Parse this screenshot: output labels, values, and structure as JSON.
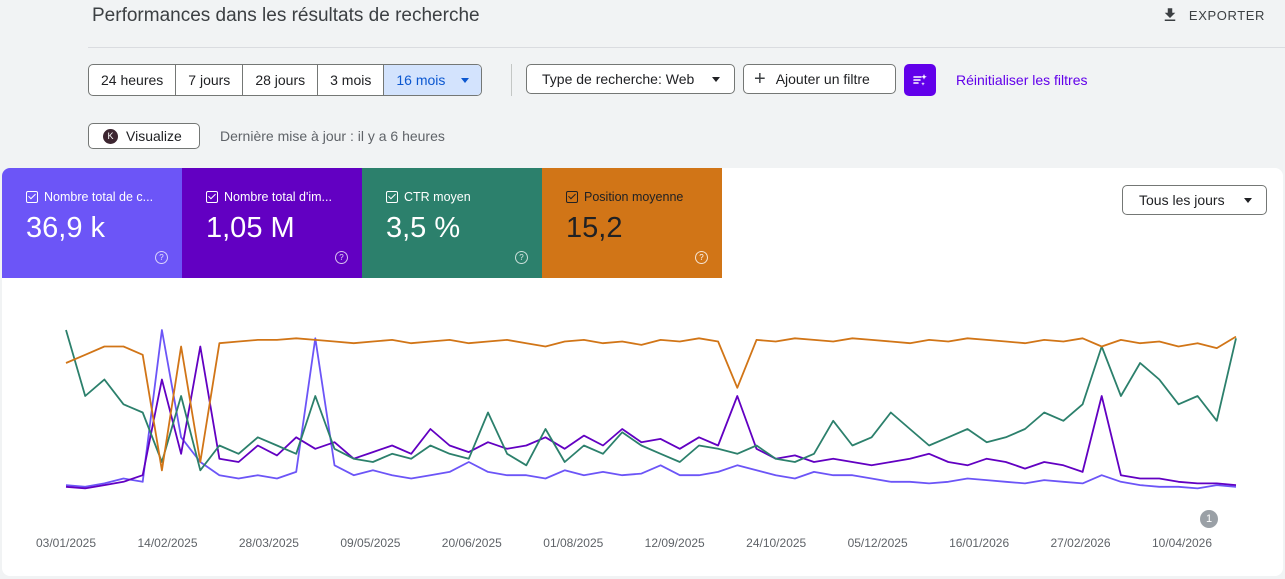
{
  "header": {
    "title": "Performances dans les résultats de recherche",
    "export_label": "EXPORTER"
  },
  "filters": {
    "ranges": [
      "24 heures",
      "7 jours",
      "28 jours",
      "3 mois",
      "16 mois"
    ],
    "active_range": "16 mois",
    "search_type": "Type de recherche: Web",
    "add_filter": "Ajouter un filtre",
    "reset": "Réinitialiser les filtres"
  },
  "toolbar": {
    "visualize": "Visualize",
    "visualize_logo": "K",
    "updated": "Dernière mise à jour : il y a 6 heures"
  },
  "metrics": [
    {
      "label": "Nombre total de c...",
      "value": "36,9 k",
      "color": "#6c55f7"
    },
    {
      "label": "Nombre total d'im...",
      "value": "1,05 M",
      "color": "#6200c2"
    },
    {
      "label": "CTR moyen",
      "value": "3,5 %",
      "color": "#2c806c"
    },
    {
      "label": "Position moyenne",
      "value": "15,2",
      "color": "#d17517"
    }
  ],
  "granularity": "Tous les jours",
  "chart_data": {
    "type": "line",
    "x_ticks": [
      "03/01/2025",
      "14/02/2025",
      "28/03/2025",
      "09/05/2025",
      "20/06/2025",
      "01/08/2025",
      "12/09/2025",
      "24/10/2025",
      "05/12/2025",
      "16/01/2026",
      "27/02/2026",
      "10/04/2026"
    ],
    "annotation_marker": "1",
    "series": [
      {
        "name": "Nombre total de c...",
        "color": "#6c55f7",
        "values": [
          0.06,
          0.05,
          0.07,
          0.1,
          0.08,
          1.0,
          0.35,
          0.2,
          0.12,
          0.1,
          0.12,
          0.1,
          0.14,
          0.95,
          0.18,
          0.12,
          0.15,
          0.12,
          0.1,
          0.12,
          0.14,
          0.2,
          0.14,
          0.12,
          0.12,
          0.1,
          0.15,
          0.12,
          0.14,
          0.12,
          0.13,
          0.18,
          0.12,
          0.12,
          0.14,
          0.18,
          0.15,
          0.12,
          0.1,
          0.14,
          0.12,
          0.12,
          0.1,
          0.08,
          0.08,
          0.07,
          0.08,
          0.1,
          0.09,
          0.08,
          0.07,
          0.09,
          0.08,
          0.07,
          0.12,
          0.08,
          0.06,
          0.05,
          0.05,
          0.04,
          0.06,
          0.05
        ]
      },
      {
        "name": "Nombre total d'im...",
        "color": "#6200c2",
        "values": [
          0.05,
          0.04,
          0.06,
          0.08,
          0.12,
          0.7,
          0.25,
          0.9,
          0.22,
          0.2,
          0.3,
          0.24,
          0.35,
          0.28,
          0.32,
          0.22,
          0.26,
          0.3,
          0.25,
          0.4,
          0.3,
          0.26,
          0.32,
          0.28,
          0.3,
          0.35,
          0.28,
          0.36,
          0.3,
          0.4,
          0.32,
          0.34,
          0.28,
          0.35,
          0.3,
          0.6,
          0.28,
          0.22,
          0.24,
          0.2,
          0.22,
          0.2,
          0.18,
          0.2,
          0.22,
          0.25,
          0.2,
          0.18,
          0.22,
          0.2,
          0.16,
          0.2,
          0.18,
          0.14,
          0.6,
          0.12,
          0.1,
          0.1,
          0.08,
          0.07,
          0.07,
          0.06
        ]
      },
      {
        "name": "CTR moyen",
        "color": "#2c806c",
        "values": [
          1.0,
          0.6,
          0.7,
          0.55,
          0.5,
          0.2,
          0.6,
          0.15,
          0.3,
          0.25,
          0.35,
          0.3,
          0.25,
          0.6,
          0.28,
          0.22,
          0.2,
          0.25,
          0.22,
          0.3,
          0.25,
          0.22,
          0.5,
          0.25,
          0.18,
          0.4,
          0.2,
          0.3,
          0.25,
          0.38,
          0.3,
          0.25,
          0.2,
          0.3,
          0.28,
          0.25,
          0.3,
          0.22,
          0.2,
          0.25,
          0.45,
          0.3,
          0.35,
          0.5,
          0.4,
          0.3,
          0.35,
          0.4,
          0.32,
          0.35,
          0.4,
          0.5,
          0.45,
          0.55,
          0.9,
          0.6,
          0.8,
          0.7,
          0.55,
          0.6,
          0.45,
          0.95
        ]
      },
      {
        "name": "Position moyenne",
        "color": "#d17517",
        "values": [
          0.8,
          0.85,
          0.9,
          0.9,
          0.85,
          0.15,
          0.9,
          0.2,
          0.92,
          0.93,
          0.94,
          0.94,
          0.95,
          0.94,
          0.93,
          0.92,
          0.93,
          0.94,
          0.92,
          0.93,
          0.94,
          0.92,
          0.93,
          0.94,
          0.92,
          0.9,
          0.93,
          0.94,
          0.92,
          0.93,
          0.91,
          0.94,
          0.93,
          0.95,
          0.93,
          0.65,
          0.94,
          0.93,
          0.95,
          0.94,
          0.93,
          0.95,
          0.94,
          0.93,
          0.92,
          0.94,
          0.93,
          0.95,
          0.94,
          0.93,
          0.92,
          0.94,
          0.93,
          0.95,
          0.9,
          0.94,
          0.92,
          0.93,
          0.9,
          0.92,
          0.89,
          0.96
        ]
      }
    ]
  }
}
